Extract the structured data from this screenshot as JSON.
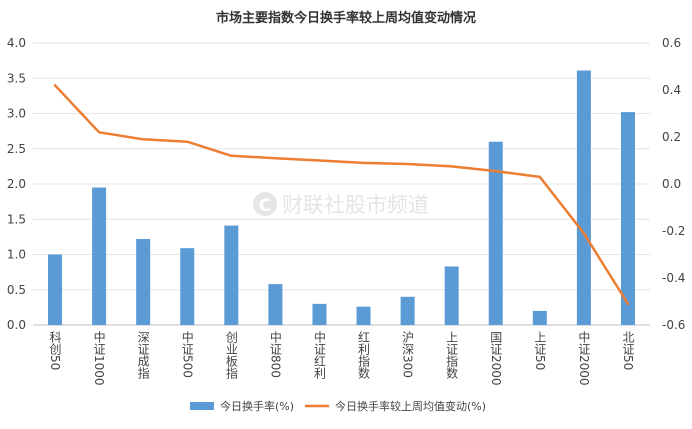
{
  "chart_data": {
    "type": "bar",
    "title": "市场主要指数今日换手率较上周均值变动情况",
    "watermark": "财联社股市频道",
    "categories": [
      "科创50",
      "中证1000",
      "深证成指",
      "中证500",
      "创业板指",
      "中证800",
      "中证红利",
      "红利指数",
      "沪深300",
      "上证指数",
      "国证2000",
      "上证50",
      "中证2000",
      "北证50"
    ],
    "series": [
      {
        "name": "今日换手率(%)",
        "type": "bar",
        "axis": "left",
        "color": "#5b9bd5",
        "values": [
          1.0,
          1.95,
          1.22,
          1.09,
          1.41,
          0.58,
          0.3,
          0.26,
          0.4,
          0.83,
          2.6,
          0.2,
          3.61,
          3.02
        ]
      },
      {
        "name": "今日换手率较上周均值变动(%)",
        "type": "line",
        "axis": "right",
        "color": "#ed7d31",
        "values": [
          0.42,
          0.22,
          0.19,
          0.18,
          0.12,
          0.11,
          0.1,
          0.09,
          0.085,
          0.075,
          0.055,
          0.03,
          -0.21,
          -0.51
        ]
      }
    ],
    "ylim_left": [
      0,
      4.0
    ],
    "yticks_left": [
      "0.0",
      "0.5",
      "1.0",
      "1.5",
      "2.0",
      "2.5",
      "3.0",
      "3.5",
      "4.0"
    ],
    "ylim_right": [
      -0.6,
      0.6
    ],
    "yticks_right": [
      "-0.6",
      "-0.4",
      "-0.2",
      "0.0",
      "0.2",
      "0.4",
      "0.6"
    ],
    "grid": true,
    "legend_position": "bottom"
  }
}
